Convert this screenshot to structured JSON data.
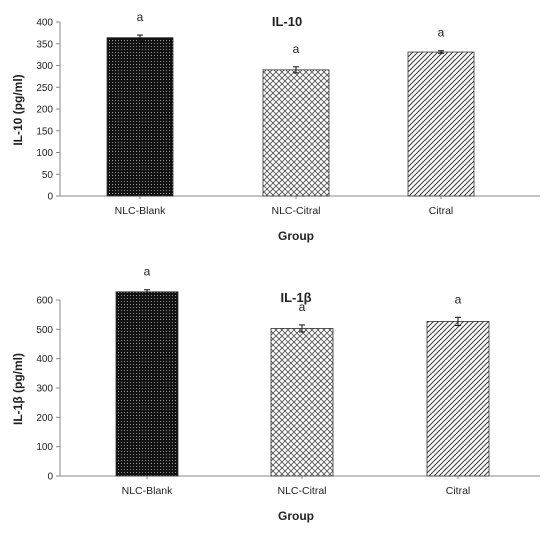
{
  "chart_data": [
    {
      "type": "bar",
      "title": "IL-10",
      "xlabel": "Group",
      "ylabel": "IL-10  (pg/ml)",
      "categories": [
        "NLC-Blank",
        "NLC-Citral",
        "Citral"
      ],
      "values": [
        364,
        290,
        331
      ],
      "errors": [
        6,
        7,
        3
      ],
      "significance": [
        "a",
        "a",
        "a"
      ],
      "ylim": [
        0,
        400
      ],
      "yticks": [
        "0",
        "50",
        "100",
        "150",
        "200",
        "250",
        "300",
        "350",
        "400"
      ],
      "grid": false,
      "fills": [
        "dots",
        "crosshatch",
        "diagonal"
      ]
    },
    {
      "type": "bar",
      "title": "IL-1β",
      "xlabel": "Group",
      "ylabel": "IL-1β (pg/ml)",
      "categories": [
        "NLC-Blank",
        "NLC-Citral",
        "Citral"
      ],
      "values": [
        628,
        503,
        527
      ],
      "errors": [
        7,
        12,
        14
      ],
      "significance": [
        "a",
        "a",
        "a"
      ],
      "ylim": [
        0,
        600
      ],
      "yticks": [
        "0",
        "100",
        "200",
        "300",
        "400",
        "500",
        "600"
      ],
      "grid": false,
      "fills": [
        "dots",
        "crosshatch",
        "diagonal"
      ]
    }
  ]
}
